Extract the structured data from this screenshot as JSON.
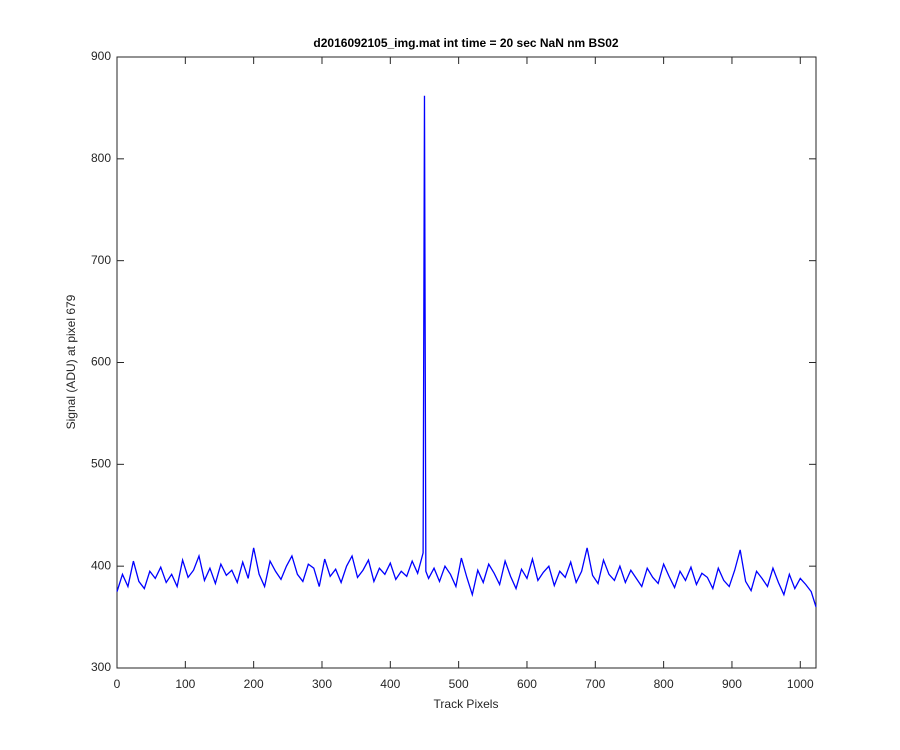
{
  "chart_data": {
    "type": "line",
    "title": "d2016092105_img.mat int time = 20 sec  NaN nm BS02",
    "x_label": "Track Pixels",
    "y_label": "Signal (ADU) at pixel 679",
    "x": [
      0,
      8,
      16,
      24,
      32,
      40,
      48,
      56,
      64,
      72,
      80,
      88,
      96,
      104,
      112,
      120,
      128,
      136,
      144,
      152,
      160,
      168,
      176,
      184,
      192,
      200,
      208,
      216,
      224,
      232,
      240,
      248,
      256,
      264,
      272,
      280,
      288,
      296,
      304,
      312,
      320,
      328,
      336,
      344,
      352,
      360,
      368,
      376,
      384,
      392,
      400,
      408,
      416,
      424,
      432,
      440,
      448,
      450,
      452,
      456,
      464,
      472,
      480,
      488,
      496,
      504,
      512,
      520,
      528,
      536,
      544,
      552,
      560,
      568,
      576,
      584,
      592,
      600,
      608,
      616,
      624,
      632,
      640,
      648,
      656,
      664,
      672,
      680,
      688,
      696,
      704,
      712,
      720,
      728,
      736,
      744,
      752,
      760,
      768,
      776,
      784,
      792,
      800,
      808,
      816,
      824,
      832,
      840,
      848,
      856,
      864,
      872,
      880,
      888,
      896,
      904,
      912,
      920,
      928,
      936,
      944,
      952,
      960,
      968,
      976,
      984,
      992,
      1000,
      1008,
      1016,
      1023
    ],
    "series": [
      {
        "name": "signal",
        "color": "#0000ff",
        "values": [
          375,
          392,
          380,
          405,
          385,
          378,
          395,
          388,
          399,
          384,
          392,
          380,
          406,
          389,
          396,
          410,
          386,
          398,
          383,
          402,
          391,
          396,
          384,
          404,
          388,
          418,
          392,
          380,
          405,
          395,
          387,
          400,
          410,
          392,
          385,
          402,
          398,
          380,
          407,
          390,
          397,
          384,
          400,
          410,
          389,
          396,
          406,
          385,
          398,
          392,
          403,
          387,
          395,
          390,
          405,
          393,
          413,
          862,
          395,
          388,
          398,
          385,
          400,
          392,
          380,
          408,
          389,
          372,
          396,
          384,
          402,
          393,
          382,
          405,
          390,
          378,
          397,
          388,
          407,
          386,
          394,
          400,
          381,
          395,
          389,
          404,
          384,
          395,
          418,
          391,
          383,
          406,
          392,
          386,
          400,
          384,
          396,
          388,
          380,
          398,
          389,
          383,
          402,
          390,
          379,
          395,
          386,
          399,
          382,
          393,
          389,
          378,
          398,
          386,
          380,
          396,
          416,
          385,
          376,
          395,
          388,
          380,
          398,
          384,
          372,
          392,
          378,
          388,
          382,
          375,
          360
        ]
      }
    ],
    "xlim": [
      0,
      1023
    ],
    "ylim": [
      300,
      900
    ],
    "xticks": [
      0,
      100,
      200,
      300,
      400,
      500,
      600,
      700,
      800,
      900,
      1000
    ],
    "yticks": [
      300,
      400,
      500,
      600,
      700,
      800,
      900
    ]
  }
}
